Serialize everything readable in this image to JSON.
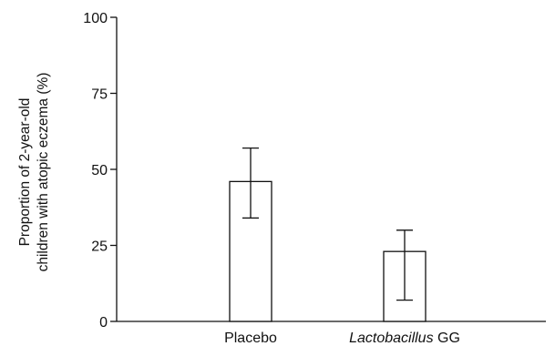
{
  "chart_data": {
    "type": "bar",
    "categories": [
      {
        "italic": "",
        "plain": "Placebo"
      },
      {
        "italic": "Lactobacillus",
        "plain": " GG"
      }
    ],
    "values": [
      46,
      23
    ],
    "error_bars": [
      {
        "low": 34,
        "high": 57
      },
      {
        "low": 7,
        "high": 30
      }
    ],
    "title": "",
    "xlabel": "",
    "ylabel": [
      "Proportion of 2-year-old",
      "children with atopic eczema (%)"
    ],
    "ylim": [
      0,
      100
    ],
    "yticks": [
      0,
      25,
      50,
      75,
      100
    ],
    "ytick_labels": [
      "0",
      "25",
      "50",
      "75",
      "100"
    ],
    "grid": false,
    "legend": "none",
    "colors": {
      "bar_fill": "#ffffff",
      "bar_stroke": "#111111",
      "axis": "#111111"
    }
  }
}
